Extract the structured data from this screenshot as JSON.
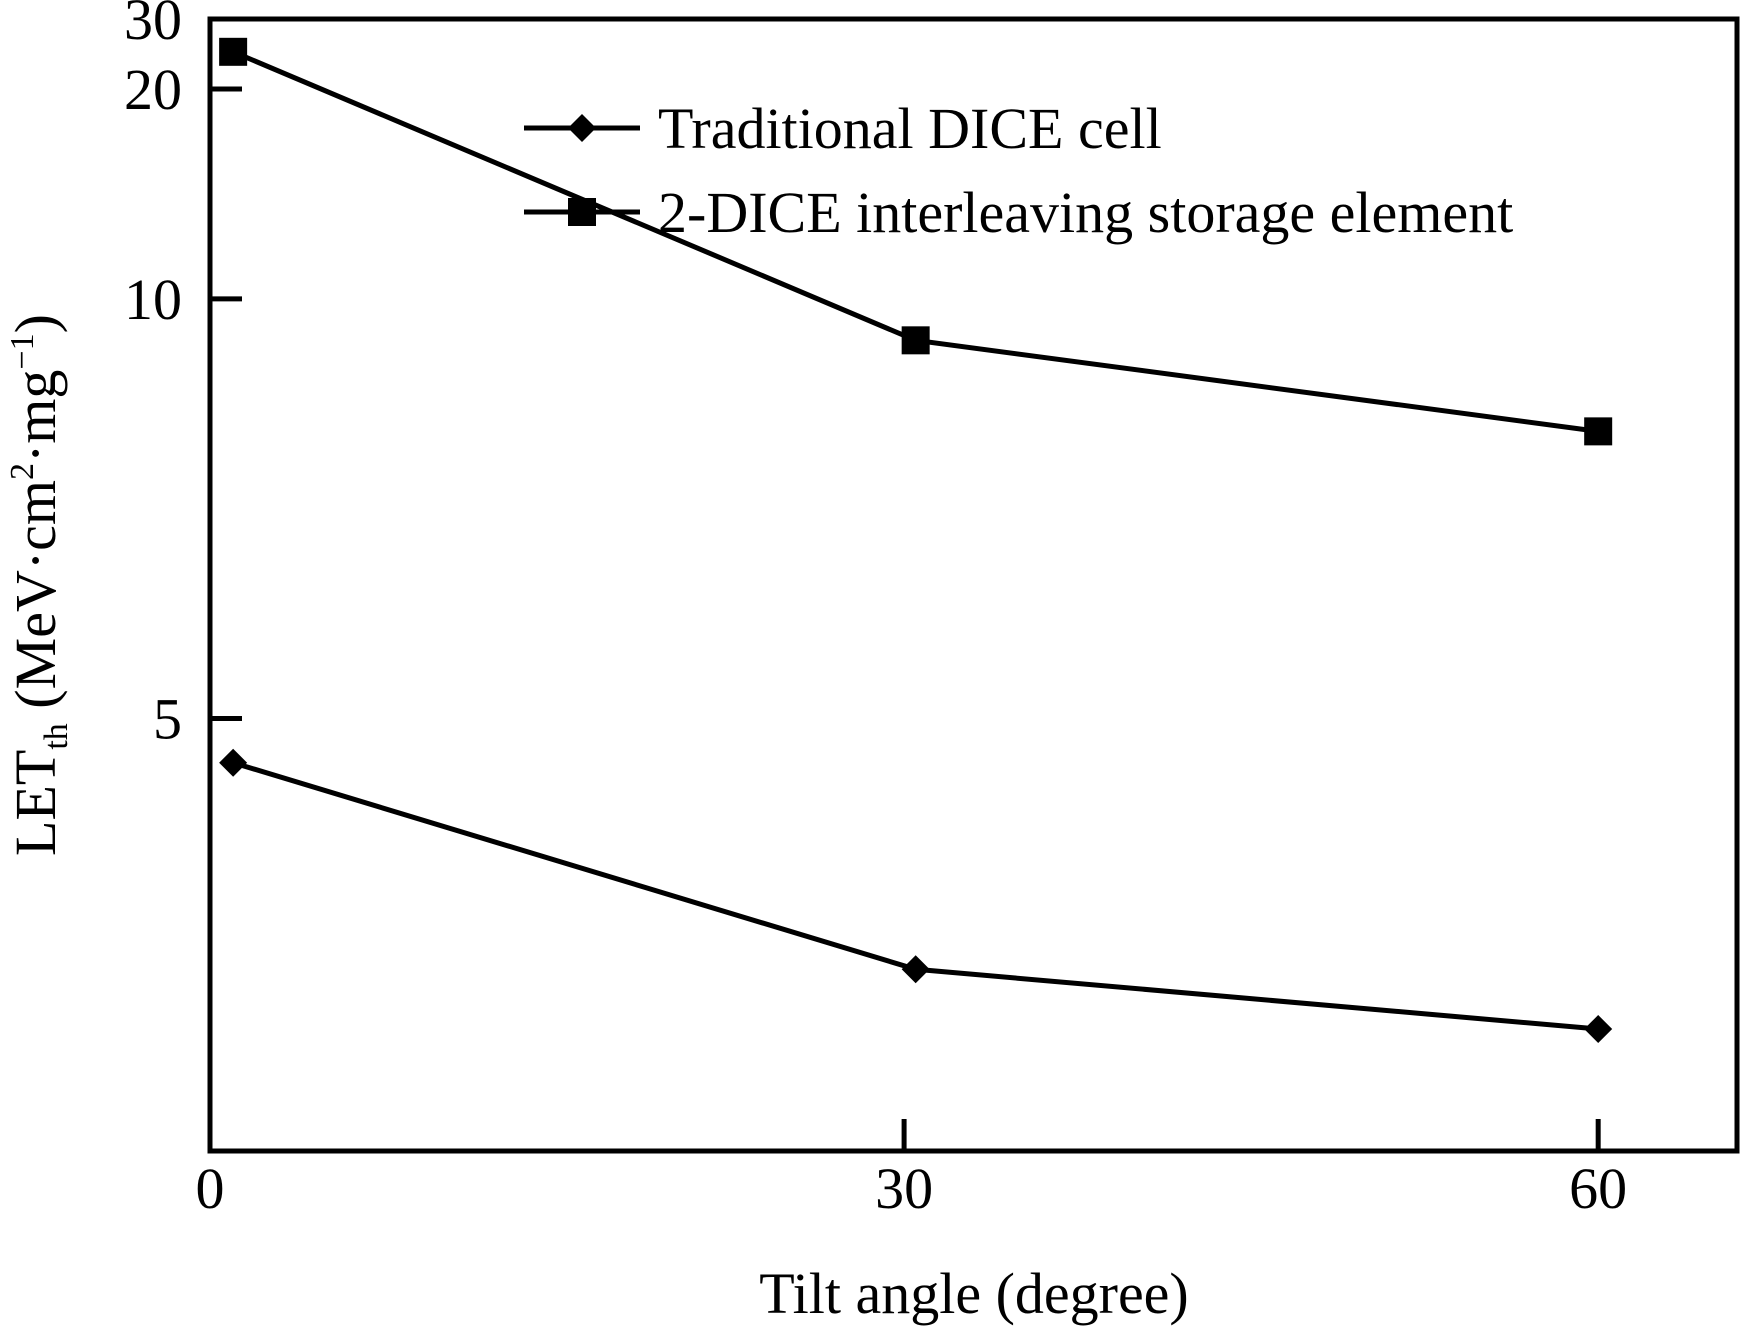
{
  "chart_data": {
    "type": "line",
    "xlabel": "Tilt angle (degree)",
    "ylabel": {
      "main": "LET",
      "subscript": "th",
      "unit_open": " (MeV·cm",
      "sup1": "2",
      "unit_mid": "·mg",
      "sup2": "−1",
      "unit_close": ")"
    },
    "x_ticks": [
      "0",
      "30",
      "60"
    ],
    "y_ticks": [
      "5",
      "10",
      "20",
      "30"
    ],
    "xlim": [
      0,
      66
    ],
    "y_scale": "reciprocal",
    "ylim": [
      30,
      3.3
    ],
    "grid": false,
    "legend_position": "top-center",
    "series": [
      {
        "name": "Traditional DICE cell",
        "marker": "diamond",
        "color": "#000000",
        "x": [
          1,
          30.5,
          60
        ],
        "y": [
          4.75,
          3.85,
          3.65
        ]
      },
      {
        "name": "2-DICE interleaving storage element",
        "marker": "square",
        "color": "#000000",
        "x": [
          1,
          30.5,
          60
        ],
        "y": [
          24.3,
          9.1,
          7.6
        ]
      }
    ]
  }
}
